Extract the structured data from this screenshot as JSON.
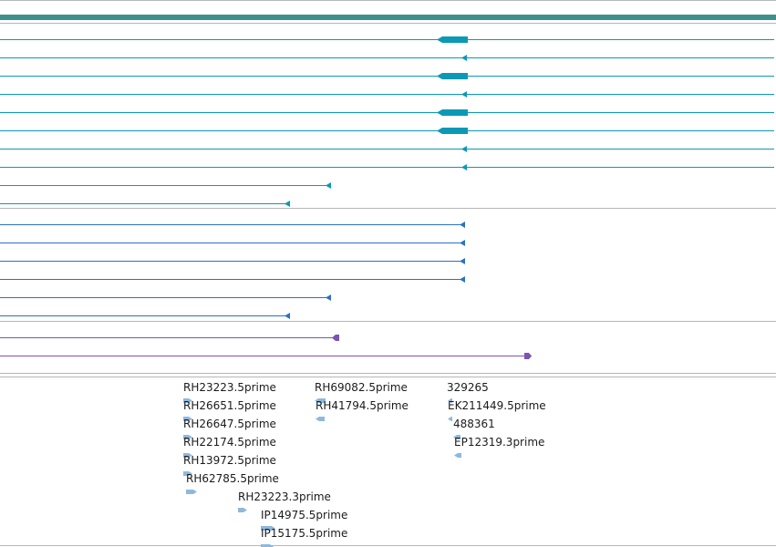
{
  "colors": {
    "bg": "#ffffff",
    "divider": "#b7b7b7",
    "header_bar": "#3f8f8d",
    "transcript": "#0b99b5",
    "protein": "#2a72c4",
    "repeat": "#7a55b3",
    "est": "#8fb8dd",
    "label": "#1b1b1b"
  },
  "transcripts": [
    {
      "name": "transcript-1",
      "end": 849,
      "feature": "exon"
    },
    {
      "name": "transcript-2",
      "end": 849,
      "feature": "arrow"
    },
    {
      "name": "transcript-3",
      "end": 849,
      "feature": "exon"
    },
    {
      "name": "transcript-4",
      "end": 849,
      "feature": "arrow"
    },
    {
      "name": "transcript-5",
      "end": 849,
      "feature": "exon"
    },
    {
      "name": "transcript-6",
      "end": 849,
      "feature": "exon"
    },
    {
      "name": "transcript-7",
      "end": 849,
      "feature": "arrow"
    },
    {
      "name": "transcript-8",
      "end": 849,
      "feature": "arrow"
    },
    {
      "name": "transcript-9",
      "end": 363,
      "feature": "arrow"
    },
    {
      "name": "transcript-10",
      "end": 318,
      "feature": "arrow"
    }
  ],
  "proteins": [
    {
      "name": "protein-1",
      "end": 510
    },
    {
      "name": "protein-2",
      "end": 510
    },
    {
      "name": "protein-3",
      "end": 510
    },
    {
      "name": "protein-4",
      "end": 510
    },
    {
      "name": "protein-5",
      "end": 363
    },
    {
      "name": "protein-6",
      "end": 318
    }
  ],
  "repeats": [
    {
      "name": "repeat-1",
      "end": 372,
      "dir": "left"
    },
    {
      "name": "repeat-2",
      "end": 583,
      "dir": "right"
    }
  ],
  "ests": [
    {
      "label": "RH23223.5prime"
    },
    {
      "label": "RH26651.5prime"
    },
    {
      "label": "RH26647.5prime"
    },
    {
      "label": "RH22174.5prime"
    },
    {
      "label": "RH13972.5prime"
    },
    {
      "label": "RH62785.5prime"
    },
    {
      "label": "RH23223.3prime"
    },
    {
      "label": "IP14975.5prime"
    },
    {
      "label": "IP15175.5prime"
    },
    {
      "label": "RH69082.5prime"
    },
    {
      "label": "RH41794.5prime"
    },
    {
      "label": "329265"
    },
    {
      "label": "EK211449.5prime"
    },
    {
      "label": "488361"
    },
    {
      "label": "EP12319.3prime"
    }
  ]
}
